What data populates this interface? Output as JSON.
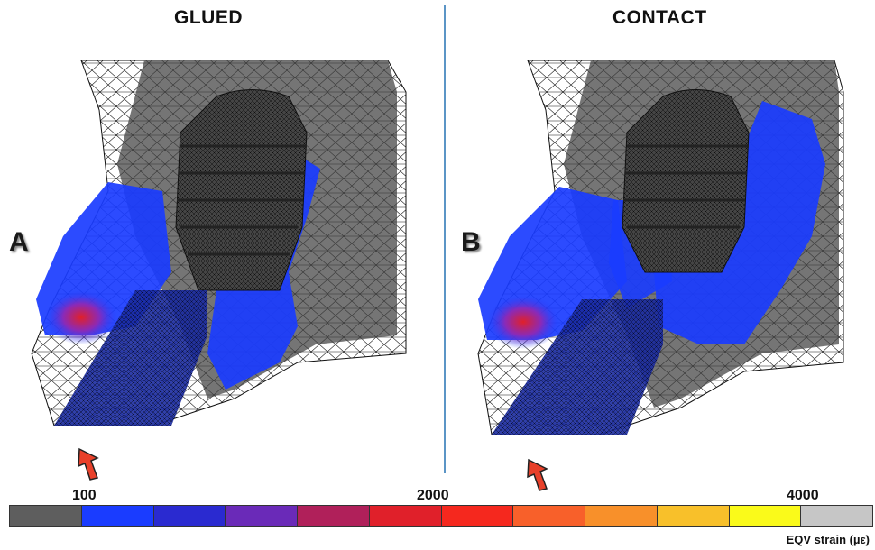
{
  "titles": {
    "left": "GLUED",
    "right": "CONTACT"
  },
  "panel_labels": {
    "left": "A",
    "right": "B"
  },
  "scale": {
    "ticks": [
      "100",
      "2000",
      "4000"
    ],
    "unit_label": "EQV strain (µε)",
    "colors": [
      "#5e5e5e",
      "#1a3cff",
      "#2a2ad0",
      "#6a2ab8",
      "#b0205a",
      "#e0202a",
      "#f5281e",
      "#f8602a",
      "#f8902a",
      "#f8c02a",
      "#fafa1a",
      "#c6c6c6"
    ]
  },
  "colors": {
    "bone": "#6e6e6e",
    "mesh": "#111111",
    "strain_low": "#1a3cff",
    "strain_high": "#e0202a",
    "arrow": "#e8402a",
    "divider": "#5b95c6"
  }
}
